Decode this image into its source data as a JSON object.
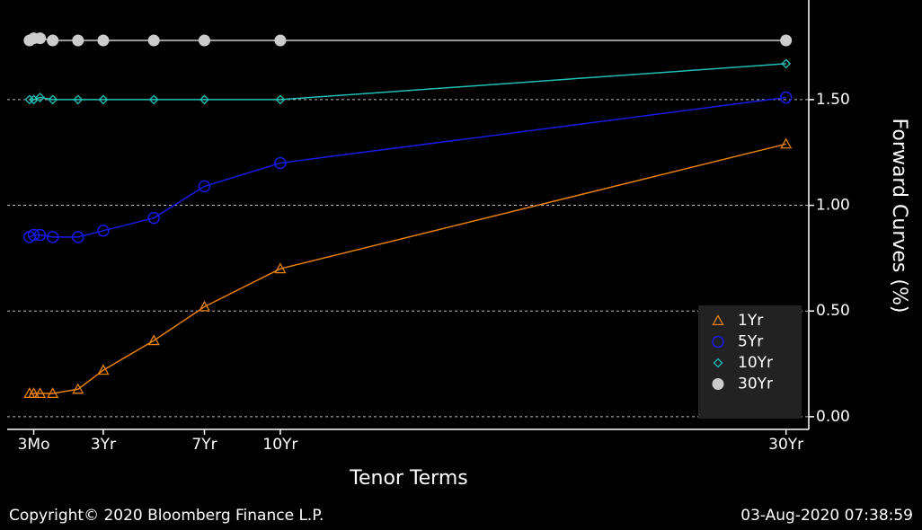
{
  "chart_data": {
    "type": "line",
    "ylabel": "Forward Curves (%)",
    "xlabel": "Tenor Terms",
    "footer_left": "Copyright© 2020 Bloomberg Finance L.P.",
    "footer_right": "03-Aug-2020 07:38:59",
    "x": [
      0.083,
      0.25,
      0.5,
      1,
      2,
      3,
      5,
      7,
      10,
      30
    ],
    "xlim": [
      -0.8,
      30.9
    ],
    "xticks": [
      {
        "value": 0.25,
        "label": "3Mo"
      },
      {
        "value": 3,
        "label": "3Yr"
      },
      {
        "value": 7,
        "label": "7Yr"
      },
      {
        "value": 10,
        "label": "10Yr"
      },
      {
        "value": 30,
        "label": "30Yr"
      }
    ],
    "ylim": [
      -0.06,
      1.95
    ],
    "yticks": [
      {
        "value": 0,
        "label": "0.00"
      },
      {
        "value": 0.5,
        "label": "0.50"
      },
      {
        "value": 1,
        "label": "1.00"
      },
      {
        "value": 1.5,
        "label": "1.50"
      }
    ],
    "grid": true,
    "legend": "lower right",
    "series": [
      {
        "name": "1Yr",
        "color": "#e8810c",
        "marker": "triangle",
        "values": [
          0.11,
          0.11,
          0.11,
          0.11,
          0.13,
          0.22,
          0.36,
          0.52,
          0.7,
          1.29
        ]
      },
      {
        "name": "5Yr",
        "color": "#1a1ae6",
        "marker": "circle",
        "values": [
          0.85,
          0.86,
          0.86,
          0.85,
          0.85,
          0.88,
          0.94,
          1.09,
          1.2,
          1.51
        ]
      },
      {
        "name": "10Yr",
        "color": "#1fc0b8",
        "marker": "diamond",
        "values": [
          1.5,
          1.5,
          1.51,
          1.5,
          1.5,
          1.5,
          1.5,
          1.5,
          1.5,
          1.67
        ]
      },
      {
        "name": "30Yr",
        "color": "#cccccc",
        "marker": "dot",
        "values": [
          1.78,
          1.79,
          1.79,
          1.78,
          1.78,
          1.78,
          1.78,
          1.78,
          1.78,
          1.78
        ]
      }
    ]
  }
}
